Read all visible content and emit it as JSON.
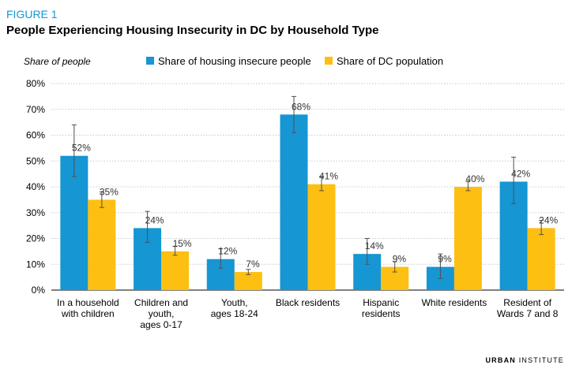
{
  "figure_label": "FIGURE 1",
  "title": "People Experiencing Housing Insecurity in DC by Household Type",
  "footer": {
    "brand_bold": "URBAN",
    "brand_rest": "INSTITUTE"
  },
  "colors": {
    "blue": "#1696d2",
    "yellow": "#fdbf11",
    "grid": "#c8c8c8",
    "error_bar": "#505050",
    "title_accent": "#1696d2"
  },
  "chart_data": {
    "type": "bar",
    "ylabel": "Share of people",
    "ylim": [
      0,
      80
    ],
    "yticks": [
      "0%",
      "10%",
      "20%",
      "30%",
      "40%",
      "50%",
      "60%",
      "70%",
      "80%"
    ],
    "grid": true,
    "legend_position": "top",
    "categories": [
      [
        "In a household",
        "with children"
      ],
      [
        "Children and",
        "youth,",
        "ages 0-17"
      ],
      [
        "Youth,",
        "ages 18-24"
      ],
      [
        "Black residents"
      ],
      [
        "Hispanic",
        "residents"
      ],
      [
        "White residents"
      ],
      [
        "Resident of",
        "Wards 7 and 8"
      ]
    ],
    "series": [
      {
        "name": "Share of housing insecure people",
        "color": "#1696d2",
        "values": [
          52,
          24,
          12,
          68,
          14,
          9,
          42
        ],
        "labels": [
          "52%",
          "24%",
          "12%",
          "68%",
          "14%",
          "9%",
          "42%"
        ],
        "error_low": [
          44,
          18.5,
          8.5,
          61,
          10,
          4.5,
          33.5
        ],
        "error_high": [
          64,
          30.5,
          16,
          75,
          20,
          14,
          51.5
        ]
      },
      {
        "name": "Share of DC population",
        "color": "#fdbf11",
        "values": [
          35,
          15,
          7,
          41,
          9,
          40,
          24
        ],
        "labels": [
          "35%",
          "15%",
          "7%",
          "41%",
          "9%",
          "40%",
          "24%"
        ],
        "error_low": [
          32,
          13.5,
          6,
          38.5,
          7,
          38.5,
          21.5
        ],
        "error_high": [
          38,
          17,
          8,
          44,
          11,
          42,
          27
        ]
      }
    ]
  }
}
